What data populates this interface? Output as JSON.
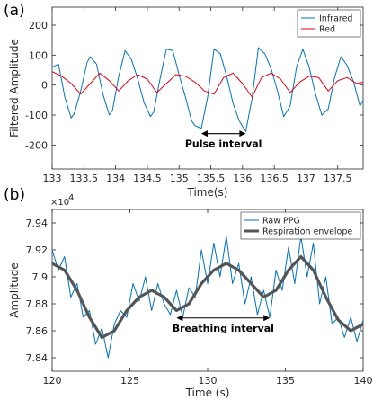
{
  "chart_data": [
    {
      "panel_label": "(a)",
      "type": "line",
      "xlabel": "Time(s)",
      "ylabel": "Filtered Amplitude",
      "xlim": [
        133,
        137.9
      ],
      "ylim": [
        -280,
        260
      ],
      "xticks": [
        133,
        133.5,
        134,
        134.5,
        135,
        135.5,
        136,
        136.5,
        137,
        137.5
      ],
      "xtick_labels": [
        "133",
        "133.5",
        "134",
        "134.5",
        "135",
        "135.5",
        "136",
        "136.5",
        "137",
        "137.5"
      ],
      "yticks": [
        -200,
        -100,
        0,
        100,
        200
      ],
      "ytick_labels": [
        "-200",
        "-100",
        "0",
        "100",
        "200"
      ],
      "legend_position": "top-right",
      "series": [
        {
          "name": "Infrared",
          "color": "#0072BD",
          "x": [
            133.0,
            133.1,
            133.2,
            133.3,
            133.35,
            133.45,
            133.55,
            133.6,
            133.7,
            133.8,
            133.9,
            133.95,
            134.05,
            134.15,
            134.25,
            134.35,
            134.45,
            134.55,
            134.6,
            134.7,
            134.8,
            134.9,
            135.0,
            135.1,
            135.2,
            135.25,
            135.35,
            135.45,
            135.55,
            135.65,
            135.75,
            135.85,
            135.95,
            136.05,
            136.15,
            136.25,
            136.35,
            136.45,
            136.55,
            136.65,
            136.75,
            136.85,
            136.95,
            137.05,
            137.15,
            137.25,
            137.35,
            137.45,
            137.55,
            137.65,
            137.75,
            137.85,
            137.9
          ],
          "y": [
            60,
            70,
            -40,
            -110,
            -95,
            -20,
            75,
            95,
            70,
            -30,
            -100,
            -85,
            30,
            115,
            85,
            20,
            -60,
            -105,
            -90,
            20,
            120,
            115,
            35,
            -40,
            -120,
            -135,
            -145,
            -40,
            120,
            105,
            30,
            -60,
            -120,
            -155,
            -45,
            125,
            105,
            55,
            -20,
            -105,
            -70,
            60,
            120,
            60,
            -30,
            -100,
            -80,
            25,
            95,
            65,
            10,
            -70,
            -50
          ]
        },
        {
          "name": "Red",
          "color": "#E3000F",
          "x": [
            133.0,
            133.15,
            133.3,
            133.45,
            133.6,
            133.75,
            133.9,
            134.05,
            134.2,
            134.35,
            134.5,
            134.65,
            134.8,
            134.95,
            135.1,
            135.25,
            135.4,
            135.55,
            135.7,
            135.85,
            136.0,
            136.15,
            136.3,
            136.45,
            136.6,
            136.75,
            136.9,
            137.05,
            137.2,
            137.35,
            137.5,
            137.65,
            137.8,
            137.9
          ],
          "y": [
            45,
            30,
            5,
            -30,
            5,
            40,
            15,
            -20,
            15,
            35,
            20,
            -25,
            5,
            35,
            30,
            10,
            -20,
            -30,
            25,
            40,
            5,
            -40,
            25,
            40,
            20,
            -25,
            10,
            30,
            25,
            -20,
            15,
            25,
            5,
            10
          ]
        }
      ],
      "annotations": [
        {
          "text": "Pulse interval",
          "type": "double-arrow",
          "x_start": 135.35,
          "x_end": 136.05,
          "y": -162
        }
      ]
    },
    {
      "panel_label": "(b)",
      "type": "line",
      "xlabel": "Time (s)",
      "ylabel": "Amplitude",
      "y_exponent_label": "×10",
      "y_exponent_power": "4",
      "xlim": [
        120,
        140
      ],
      "ylim": [
        7.83,
        7.95
      ],
      "xticks": [
        120,
        125,
        130,
        135,
        140
      ],
      "xtick_labels": [
        "120",
        "125",
        "130",
        "135",
        "140"
      ],
      "yticks": [
        7.84,
        7.86,
        7.88,
        7.9,
        7.92,
        7.94
      ],
      "ytick_labels": [
        "7.84",
        "7.86",
        "7.88",
        "7.9",
        "7.92",
        "7.94"
      ],
      "legend_position": "top-right",
      "series": [
        {
          "name": "Raw PPG",
          "color": "#0072BD",
          "x": [
            120.0,
            120.4,
            120.8,
            121.2,
            121.6,
            122.0,
            122.4,
            122.8,
            123.2,
            123.6,
            124.0,
            124.4,
            124.8,
            125.2,
            125.6,
            126.0,
            126.4,
            126.8,
            127.2,
            127.6,
            128.0,
            128.4,
            128.8,
            129.2,
            129.6,
            130.0,
            130.4,
            130.8,
            131.2,
            131.6,
            132.0,
            132.4,
            132.8,
            133.2,
            133.6,
            134.0,
            134.4,
            134.8,
            135.2,
            135.6,
            136.0,
            136.4,
            136.8,
            137.2,
            137.6,
            138.0,
            138.4,
            138.8,
            139.2,
            139.6,
            140.0
          ],
          "y": [
            7.92,
            7.905,
            7.915,
            7.885,
            7.895,
            7.87,
            7.875,
            7.85,
            7.862,
            7.84,
            7.865,
            7.875,
            7.87,
            7.895,
            7.882,
            7.9,
            7.875,
            7.895,
            7.88,
            7.872,
            7.89,
            7.87,
            7.892,
            7.885,
            7.92,
            7.895,
            7.925,
            7.9,
            7.93,
            7.895,
            7.91,
            7.88,
            7.9,
            7.872,
            7.89,
            7.87,
            7.905,
            7.89,
            7.922,
            7.895,
            7.93,
            7.9,
            7.925,
            7.88,
            7.9,
            7.865,
            7.87,
            7.855,
            7.87,
            7.852,
            7.868
          ]
        },
        {
          "name": "Respiration envelope",
          "color": "#555555",
          "x": [
            120.0,
            120.8,
            121.6,
            122.4,
            123.2,
            124.0,
            124.8,
            125.6,
            126.4,
            127.2,
            128.0,
            128.8,
            129.6,
            130.4,
            131.2,
            132.0,
            132.8,
            133.6,
            134.4,
            135.2,
            136.0,
            136.8,
            137.6,
            138.4,
            139.2,
            140.0
          ],
          "y": [
            7.91,
            7.905,
            7.89,
            7.87,
            7.855,
            7.86,
            7.875,
            7.885,
            7.89,
            7.885,
            7.875,
            7.88,
            7.895,
            7.905,
            7.91,
            7.905,
            7.895,
            7.885,
            7.89,
            7.905,
            7.915,
            7.905,
            7.885,
            7.868,
            7.86,
            7.865
          ]
        }
      ],
      "annotations": [
        {
          "text": "Breathing interval",
          "type": "double-arrow",
          "x_start": 128.0,
          "x_end": 134.0,
          "y": 7.8695
        }
      ]
    }
  ]
}
